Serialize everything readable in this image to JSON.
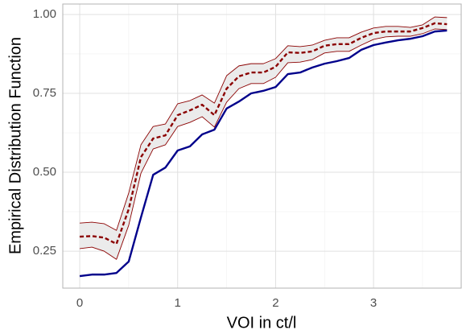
{
  "chart_data": {
    "type": "line",
    "x_label": "VOI in ct/l",
    "y_label": "Empirical Distribution Function",
    "x": [
      0,
      0.125,
      0.25,
      0.375,
      0.5,
      0.625,
      0.75,
      0.875,
      1,
      1.125,
      1.25,
      1.375,
      1.5,
      1.625,
      1.75,
      1.875,
      2,
      2.125,
      2.25,
      2.375,
      2.5,
      2.625,
      2.75,
      2.875,
      3,
      3.125,
      3.25,
      3.375,
      3.5,
      3.625,
      3.75
    ],
    "series": [
      {
        "color": "#00008b",
        "dash": false,
        "values": [
          0.171,
          0.176,
          0.176,
          0.181,
          0.217,
          0.357,
          0.492,
          0.515,
          0.569,
          0.582,
          0.62,
          0.635,
          0.702,
          0.724,
          0.75,
          0.758,
          0.77,
          0.811,
          0.816,
          0.832,
          0.844,
          0.852,
          0.862,
          0.888,
          0.903,
          0.911,
          0.918,
          0.923,
          0.931,
          0.946,
          0.949
        ]
      },
      {
        "color": "#8b0000",
        "dash": true,
        "values": [
          0.296,
          0.298,
          0.293,
          0.273,
          0.383,
          0.548,
          0.607,
          0.617,
          0.681,
          0.696,
          0.714,
          0.681,
          0.765,
          0.804,
          0.816,
          0.816,
          0.834,
          0.88,
          0.878,
          0.883,
          0.901,
          0.906,
          0.906,
          0.926,
          0.941,
          0.946,
          0.946,
          0.946,
          0.957,
          0.972,
          0.969
        ]
      }
    ],
    "band": {
      "color": "#8b0000",
      "fill": "#ebebeb",
      "upper": [
        0.339,
        0.342,
        0.337,
        0.316,
        0.434,
        0.587,
        0.645,
        0.653,
        0.717,
        0.727,
        0.745,
        0.719,
        0.806,
        0.837,
        0.844,
        0.844,
        0.86,
        0.901,
        0.898,
        0.903,
        0.918,
        0.926,
        0.926,
        0.944,
        0.957,
        0.962,
        0.962,
        0.959,
        0.967,
        0.992,
        0.99
      ],
      "lower": [
        0.258,
        0.263,
        0.25,
        0.224,
        0.332,
        0.497,
        0.574,
        0.587,
        0.645,
        0.658,
        0.676,
        0.643,
        0.722,
        0.765,
        0.781,
        0.781,
        0.801,
        0.847,
        0.849,
        0.857,
        0.878,
        0.883,
        0.883,
        0.903,
        0.921,
        0.929,
        0.931,
        0.931,
        0.939,
        0.954,
        0.952
      ]
    },
    "xlim": [
      -0.173,
      3.895
    ],
    "ylim": [
      0.133,
      1.033
    ],
    "xticks": [
      0,
      1,
      2,
      3
    ],
    "yticks": [
      0.25,
      {
        "value": 0.5,
        "label": "0.50"
      },
      0.75,
      {
        "value": 1,
        "label": "1.00"
      }
    ],
    "minor_xticks": [
      0.5,
      1.5,
      2.5,
      3.5
    ],
    "minor_yticks": [
      0.375,
      0.625,
      0.875
    ],
    "grid": true
  }
}
